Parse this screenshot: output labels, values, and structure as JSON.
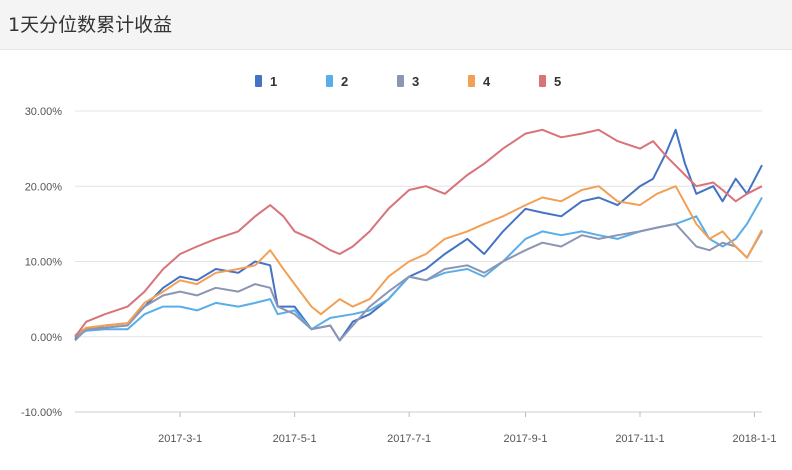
{
  "header": {
    "title": "1天分位数累计收益"
  },
  "chart_data": {
    "type": "line",
    "title": "1天分位数累计收益",
    "xlabel": "",
    "ylabel": "",
    "x_range": [
      "2017-01-04",
      "2018-01-05"
    ],
    "x_ticks": [
      "2017-3-1",
      "2017-5-1",
      "2017-7-1",
      "2017-9-1",
      "2017-11-1",
      "2018-1-1"
    ],
    "ylim": [
      -0.1,
      0.3
    ],
    "y_ticks": [
      -0.1,
      0.0,
      0.1,
      0.2,
      0.3
    ],
    "y_tick_labels": [
      "-10.00%",
      "0.00%",
      "10.00%",
      "20.00%",
      "30.00%"
    ],
    "grid": "horizontal",
    "legend_position": "top-center",
    "series": [
      {
        "name": "1",
        "color": "#4472c4",
        "points": [
          [
            "2017-01-04",
            -0.003
          ],
          [
            "2017-01-10",
            0.01
          ],
          [
            "2017-01-20",
            0.015
          ],
          [
            "2017-02-01",
            0.018
          ],
          [
            "2017-02-10",
            0.04
          ],
          [
            "2017-02-20",
            0.065
          ],
          [
            "2017-03-01",
            0.08
          ],
          [
            "2017-03-10",
            0.075
          ],
          [
            "2017-03-20",
            0.09
          ],
          [
            "2017-04-01",
            0.085
          ],
          [
            "2017-04-10",
            0.1
          ],
          [
            "2017-04-18",
            0.095
          ],
          [
            "2017-04-22",
            0.04
          ],
          [
            "2017-05-01",
            0.04
          ],
          [
            "2017-05-10",
            0.01
          ],
          [
            "2017-05-20",
            0.015
          ],
          [
            "2017-05-25",
            -0.005
          ],
          [
            "2017-06-01",
            0.02
          ],
          [
            "2017-06-10",
            0.03
          ],
          [
            "2017-06-20",
            0.05
          ],
          [
            "2017-07-01",
            0.08
          ],
          [
            "2017-07-10",
            0.09
          ],
          [
            "2017-07-20",
            0.11
          ],
          [
            "2017-08-01",
            0.13
          ],
          [
            "2017-08-10",
            0.11
          ],
          [
            "2017-08-20",
            0.14
          ],
          [
            "2017-09-01",
            0.17
          ],
          [
            "2017-09-10",
            0.165
          ],
          [
            "2017-09-20",
            0.16
          ],
          [
            "2017-10-01",
            0.18
          ],
          [
            "2017-10-10",
            0.185
          ],
          [
            "2017-10-20",
            0.175
          ],
          [
            "2017-11-01",
            0.2
          ],
          [
            "2017-11-08",
            0.21
          ],
          [
            "2017-11-15",
            0.245
          ],
          [
            "2017-11-20",
            0.275
          ],
          [
            "2017-11-25",
            0.23
          ],
          [
            "2017-12-01",
            0.19
          ],
          [
            "2017-12-10",
            0.2
          ],
          [
            "2017-12-15",
            0.18
          ],
          [
            "2017-12-22",
            0.21
          ],
          [
            "2017-12-28",
            0.19
          ],
          [
            "2018-01-05",
            0.228
          ]
        ]
      },
      {
        "name": "2",
        "color": "#5aaee8",
        "points": [
          [
            "2017-01-04",
            0.0
          ],
          [
            "2017-01-10",
            0.008
          ],
          [
            "2017-01-20",
            0.01
          ],
          [
            "2017-02-01",
            0.01
          ],
          [
            "2017-02-10",
            0.03
          ],
          [
            "2017-02-20",
            0.04
          ],
          [
            "2017-03-01",
            0.04
          ],
          [
            "2017-03-10",
            0.035
          ],
          [
            "2017-03-20",
            0.045
          ],
          [
            "2017-04-01",
            0.04
          ],
          [
            "2017-04-10",
            0.045
          ],
          [
            "2017-04-18",
            0.05
          ],
          [
            "2017-04-22",
            0.03
          ],
          [
            "2017-05-01",
            0.035
          ],
          [
            "2017-05-10",
            0.01
          ],
          [
            "2017-05-20",
            0.025
          ],
          [
            "2017-06-01",
            0.03
          ],
          [
            "2017-06-10",
            0.035
          ],
          [
            "2017-06-20",
            0.05
          ],
          [
            "2017-07-01",
            0.08
          ],
          [
            "2017-07-10",
            0.075
          ],
          [
            "2017-07-20",
            0.085
          ],
          [
            "2017-08-01",
            0.09
          ],
          [
            "2017-08-10",
            0.08
          ],
          [
            "2017-08-20",
            0.1
          ],
          [
            "2017-09-01",
            0.13
          ],
          [
            "2017-09-10",
            0.14
          ],
          [
            "2017-09-20",
            0.135
          ],
          [
            "2017-10-01",
            0.14
          ],
          [
            "2017-10-10",
            0.135
          ],
          [
            "2017-10-20",
            0.13
          ],
          [
            "2017-11-01",
            0.14
          ],
          [
            "2017-11-10",
            0.145
          ],
          [
            "2017-11-20",
            0.15
          ],
          [
            "2017-12-01",
            0.16
          ],
          [
            "2017-12-08",
            0.13
          ],
          [
            "2017-12-15",
            0.12
          ],
          [
            "2017-12-22",
            0.13
          ],
          [
            "2017-12-28",
            0.15
          ],
          [
            "2018-01-05",
            0.185
          ]
        ]
      },
      {
        "name": "3",
        "color": "#8c95b3",
        "points": [
          [
            "2017-01-04",
            -0.005
          ],
          [
            "2017-01-10",
            0.01
          ],
          [
            "2017-01-20",
            0.012
          ],
          [
            "2017-02-01",
            0.015
          ],
          [
            "2017-02-10",
            0.04
          ],
          [
            "2017-02-20",
            0.055
          ],
          [
            "2017-03-01",
            0.06
          ],
          [
            "2017-03-10",
            0.055
          ],
          [
            "2017-03-20",
            0.065
          ],
          [
            "2017-04-01",
            0.06
          ],
          [
            "2017-04-10",
            0.07
          ],
          [
            "2017-04-18",
            0.065
          ],
          [
            "2017-04-22",
            0.04
          ],
          [
            "2017-05-01",
            0.03
          ],
          [
            "2017-05-10",
            0.01
          ],
          [
            "2017-05-20",
            0.015
          ],
          [
            "2017-05-25",
            -0.005
          ],
          [
            "2017-06-01",
            0.015
          ],
          [
            "2017-06-10",
            0.04
          ],
          [
            "2017-06-20",
            0.06
          ],
          [
            "2017-07-01",
            0.08
          ],
          [
            "2017-07-10",
            0.075
          ],
          [
            "2017-07-20",
            0.09
          ],
          [
            "2017-08-01",
            0.095
          ],
          [
            "2017-08-10",
            0.085
          ],
          [
            "2017-08-20",
            0.1
          ],
          [
            "2017-09-01",
            0.115
          ],
          [
            "2017-09-10",
            0.125
          ],
          [
            "2017-09-20",
            0.12
          ],
          [
            "2017-10-01",
            0.135
          ],
          [
            "2017-10-10",
            0.13
          ],
          [
            "2017-10-20",
            0.135
          ],
          [
            "2017-11-01",
            0.14
          ],
          [
            "2017-11-10",
            0.145
          ],
          [
            "2017-11-20",
            0.15
          ],
          [
            "2017-12-01",
            0.12
          ],
          [
            "2017-12-08",
            0.115
          ],
          [
            "2017-12-15",
            0.125
          ],
          [
            "2017-12-22",
            0.12
          ],
          [
            "2017-12-28",
            0.105
          ],
          [
            "2018-01-05",
            0.14
          ]
        ]
      },
      {
        "name": "4",
        "color": "#f2a056",
        "points": [
          [
            "2017-01-04",
            0.002
          ],
          [
            "2017-01-10",
            0.012
          ],
          [
            "2017-01-20",
            0.015
          ],
          [
            "2017-02-01",
            0.018
          ],
          [
            "2017-02-10",
            0.045
          ],
          [
            "2017-02-20",
            0.06
          ],
          [
            "2017-03-01",
            0.075
          ],
          [
            "2017-03-10",
            0.07
          ],
          [
            "2017-03-20",
            0.085
          ],
          [
            "2017-04-01",
            0.09
          ],
          [
            "2017-04-10",
            0.095
          ],
          [
            "2017-04-18",
            0.115
          ],
          [
            "2017-04-25",
            0.09
          ],
          [
            "2017-05-01",
            0.07
          ],
          [
            "2017-05-10",
            0.04
          ],
          [
            "2017-05-15",
            0.03
          ],
          [
            "2017-05-25",
            0.05
          ],
          [
            "2017-06-01",
            0.04
          ],
          [
            "2017-06-10",
            0.05
          ],
          [
            "2017-06-20",
            0.08
          ],
          [
            "2017-07-01",
            0.1
          ],
          [
            "2017-07-10",
            0.11
          ],
          [
            "2017-07-20",
            0.13
          ],
          [
            "2017-08-01",
            0.14
          ],
          [
            "2017-08-10",
            0.15
          ],
          [
            "2017-08-20",
            0.16
          ],
          [
            "2017-09-01",
            0.175
          ],
          [
            "2017-09-10",
            0.185
          ],
          [
            "2017-09-20",
            0.18
          ],
          [
            "2017-10-01",
            0.195
          ],
          [
            "2017-10-10",
            0.2
          ],
          [
            "2017-10-20",
            0.18
          ],
          [
            "2017-11-01",
            0.175
          ],
          [
            "2017-11-10",
            0.19
          ],
          [
            "2017-11-20",
            0.2
          ],
          [
            "2017-12-01",
            0.15
          ],
          [
            "2017-12-08",
            0.13
          ],
          [
            "2017-12-15",
            0.14
          ],
          [
            "2017-12-22",
            0.12
          ],
          [
            "2017-12-28",
            0.105
          ],
          [
            "2018-01-05",
            0.142
          ]
        ]
      },
      {
        "name": "5",
        "color": "#d9737a",
        "points": [
          [
            "2017-01-04",
            0.0
          ],
          [
            "2017-01-10",
            0.02
          ],
          [
            "2017-01-20",
            0.03
          ],
          [
            "2017-02-01",
            0.04
          ],
          [
            "2017-02-10",
            0.06
          ],
          [
            "2017-02-20",
            0.09
          ],
          [
            "2017-03-01",
            0.11
          ],
          [
            "2017-03-10",
            0.12
          ],
          [
            "2017-03-20",
            0.13
          ],
          [
            "2017-04-01",
            0.14
          ],
          [
            "2017-04-10",
            0.16
          ],
          [
            "2017-04-18",
            0.175
          ],
          [
            "2017-04-25",
            0.16
          ],
          [
            "2017-05-01",
            0.14
          ],
          [
            "2017-05-10",
            0.13
          ],
          [
            "2017-05-20",
            0.115
          ],
          [
            "2017-05-25",
            0.11
          ],
          [
            "2017-06-01",
            0.12
          ],
          [
            "2017-06-10",
            0.14
          ],
          [
            "2017-06-20",
            0.17
          ],
          [
            "2017-07-01",
            0.195
          ],
          [
            "2017-07-10",
            0.2
          ],
          [
            "2017-07-20",
            0.19
          ],
          [
            "2017-08-01",
            0.215
          ],
          [
            "2017-08-10",
            0.23
          ],
          [
            "2017-08-20",
            0.25
          ],
          [
            "2017-09-01",
            0.27
          ],
          [
            "2017-09-10",
            0.275
          ],
          [
            "2017-09-20",
            0.265
          ],
          [
            "2017-10-01",
            0.27
          ],
          [
            "2017-10-10",
            0.275
          ],
          [
            "2017-10-20",
            0.26
          ],
          [
            "2017-11-01",
            0.25
          ],
          [
            "2017-11-08",
            0.26
          ],
          [
            "2017-11-15",
            0.24
          ],
          [
            "2017-11-25",
            0.215
          ],
          [
            "2017-12-01",
            0.2
          ],
          [
            "2017-12-10",
            0.205
          ],
          [
            "2017-12-15",
            0.195
          ],
          [
            "2017-12-22",
            0.18
          ],
          [
            "2017-12-28",
            0.19
          ],
          [
            "2018-01-05",
            0.2
          ]
        ]
      }
    ]
  }
}
